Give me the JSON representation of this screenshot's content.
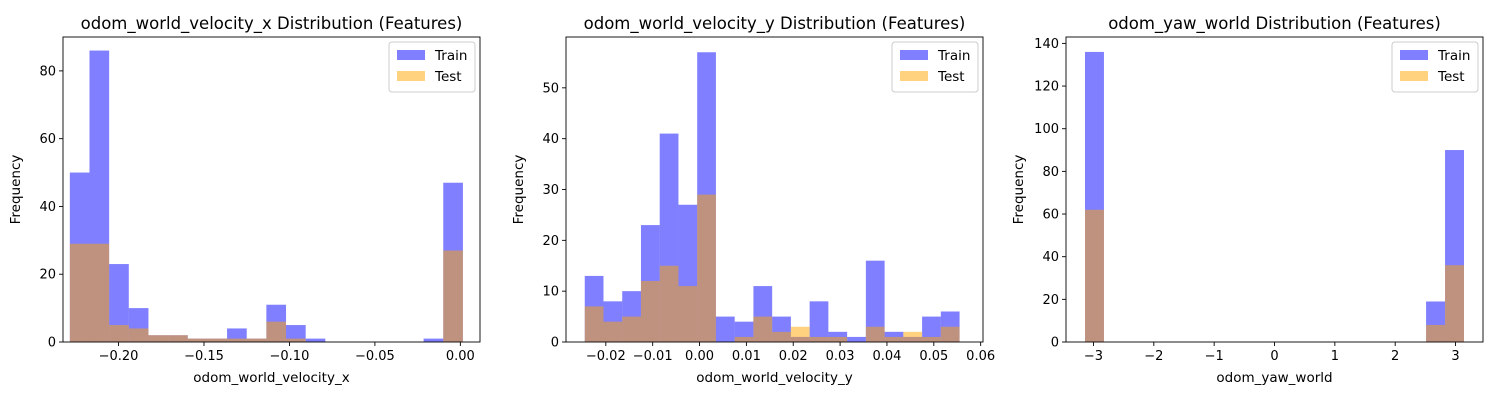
{
  "chart_data": [
    {
      "type": "histogram",
      "title": "odom_world_velocity_x Distribution (Features)",
      "xlabel": "odom_world_velocity_x",
      "ylabel": "Frequency",
      "xlim": [
        -0.2325,
        0.0115
      ],
      "ylim": [
        0,
        90
      ],
      "xticks": [
        -0.2,
        -0.15,
        -0.1,
        -0.05,
        0.0
      ],
      "xtick_labels": [
        "−0.20",
        "−0.15",
        "−0.10",
        "−0.05",
        "0.00"
      ],
      "yticks": [
        0,
        20,
        40,
        60,
        80
      ],
      "ytick_labels": [
        "0",
        "20",
        "40",
        "60",
        "80"
      ],
      "bin_edges": [
        -0.2285,
        -0.217,
        -0.2055,
        -0.194,
        -0.1825,
        -0.171,
        -0.1595,
        -0.148,
        -0.1365,
        -0.125,
        -0.1135,
        -0.102,
        -0.0905,
        -0.079,
        -0.0675,
        -0.056,
        -0.0445,
        -0.033,
        -0.0215,
        -0.01,
        0.0015
      ],
      "legend": "top-right",
      "series": [
        {
          "name": "Train",
          "color": "#0000ff",
          "alpha": 0.5,
          "values": [
            50,
            86,
            23,
            10,
            2,
            2,
            1,
            1,
            4,
            1,
            11,
            5,
            1,
            0,
            0,
            0,
            0,
            0,
            1,
            47
          ]
        },
        {
          "name": "Test",
          "color": "#ffa500",
          "alpha": 0.5,
          "values": [
            29,
            29,
            5,
            4,
            2,
            2,
            1,
            1,
            1,
            1,
            6,
            1,
            0,
            0,
            0,
            0,
            0,
            0,
            0,
            27
          ]
        }
      ]
    },
    {
      "type": "histogram",
      "title": "odom_world_velocity_y Distribution (Features)",
      "xlabel": "odom_world_velocity_y",
      "ylabel": "Frequency",
      "xlim": [
        -0.0285,
        0.0605
      ],
      "ylim": [
        0,
        60
      ],
      "xticks": [
        -0.02,
        -0.01,
        0.0,
        0.01,
        0.02,
        0.03,
        0.04,
        0.05,
        0.06
      ],
      "xtick_labels": [
        "−0.02",
        "−0.01",
        "0.00",
        "0.01",
        "0.02",
        "0.03",
        "0.04",
        "0.05",
        "0.06"
      ],
      "yticks": [
        0,
        10,
        20,
        30,
        40,
        50
      ],
      "ytick_labels": [
        "0",
        "10",
        "20",
        "30",
        "40",
        "50"
      ],
      "bin_edges": [
        -0.0245,
        -0.0205,
        -0.0165,
        -0.0125,
        -0.0085,
        -0.0045,
        -0.0005,
        0.0035,
        0.0075,
        0.0115,
        0.0155,
        0.0195,
        0.0235,
        0.0275,
        0.0315,
        0.0355,
        0.0395,
        0.0435,
        0.0475,
        0.0515,
        0.0555
      ],
      "legend": "top-right",
      "series": [
        {
          "name": "Train",
          "color": "#0000ff",
          "alpha": 0.5,
          "values": [
            13,
            8,
            10,
            23,
            41,
            27,
            57,
            5,
            4,
            11,
            5,
            1,
            8,
            2,
            1,
            16,
            2,
            1,
            5,
            6
          ]
        },
        {
          "name": "Test",
          "color": "#ffa500",
          "alpha": 0.5,
          "values": [
            7,
            4,
            5,
            12,
            15,
            11,
            29,
            0,
            1,
            5,
            2,
            3,
            1,
            1,
            0,
            3,
            1,
            2,
            1,
            3
          ]
        }
      ]
    },
    {
      "type": "histogram",
      "title": "odom_yaw_world Distribution (Features)",
      "xlabel": "odom_yaw_world",
      "ylabel": "Frequency",
      "xlim": [
        -3.455,
        3.455
      ],
      "ylim": [
        0,
        143
      ],
      "xticks": [
        -3,
        -2,
        -1,
        0,
        1,
        2,
        3
      ],
      "xtick_labels": [
        "−3",
        "−2",
        "−1",
        "0",
        "1",
        "2",
        "3"
      ],
      "yticks": [
        0,
        20,
        40,
        60,
        80,
        100,
        120,
        140
      ],
      "ytick_labels": [
        "0",
        "20",
        "40",
        "60",
        "80",
        "100",
        "120",
        "140"
      ],
      "bin_edges": [
        -3.14,
        -2.826,
        -2.512,
        -2.198,
        -1.884,
        -1.57,
        -1.256,
        -0.942,
        -0.628,
        -0.314,
        0.0,
        0.314,
        0.628,
        0.942,
        1.256,
        1.57,
        1.884,
        2.198,
        2.512,
        2.826,
        3.14
      ],
      "legend": "top-right",
      "series": [
        {
          "name": "Train",
          "color": "#0000ff",
          "alpha": 0.5,
          "values": [
            136,
            0,
            0,
            0,
            0,
            0,
            0,
            0,
            0,
            0,
            0,
            0,
            0,
            0,
            0,
            0,
            0,
            0,
            19,
            90
          ]
        },
        {
          "name": "Test",
          "color": "#ffa500",
          "alpha": 0.5,
          "values": [
            62,
            0,
            0,
            0,
            0,
            0,
            0,
            0,
            0,
            0,
            0,
            0,
            0,
            0,
            0,
            0,
            0,
            0,
            8,
            36
          ]
        }
      ]
    }
  ]
}
